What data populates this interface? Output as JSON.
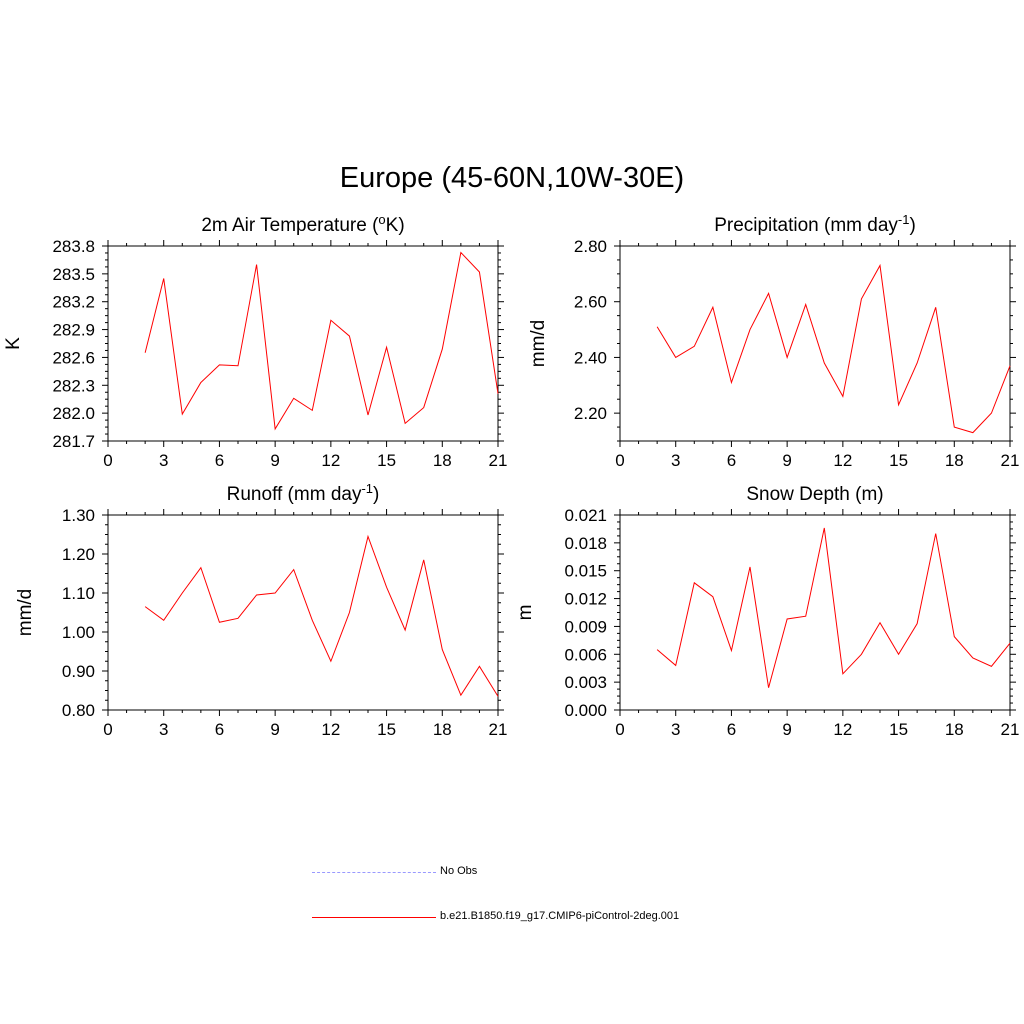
{
  "title": "Europe (45-60N,10W-30E)",
  "colors": {
    "model": "#ff0000",
    "obs": "#9999ff"
  },
  "legend": [
    {
      "label": "No Obs",
      "style": "dashed",
      "color": "#9999ff"
    },
    {
      "label": "b.e21.B1850.f19_g17.CMIP6-piControl-2deg.001",
      "style": "solid",
      "color": "#ff0000"
    }
  ],
  "chart_data": [
    {
      "type": "line",
      "title_main": "2m Air Temperature (",
      "title_sup": "o",
      "title_end": "K)",
      "ylabel": "K",
      "xlim": [
        0,
        21
      ],
      "ylim": [
        281.7,
        283.8
      ],
      "xticks": [
        0,
        3,
        6,
        9,
        12,
        15,
        18,
        21
      ],
      "yticks": [
        281.7,
        282.0,
        282.3,
        282.6,
        282.9,
        283.2,
        283.5,
        283.8
      ],
      "ytick_labels": [
        "281.7",
        "282.0",
        "282.3",
        "282.6",
        "282.9",
        "283.2",
        "283.5",
        "283.8"
      ],
      "series": [
        {
          "name": "b.e21.B1850.f19_g17.CMIP6-piControl-2deg.001",
          "x": [
            2,
            3,
            4,
            5,
            6,
            7,
            8,
            9,
            10,
            11,
            12,
            13,
            14,
            15,
            16,
            17,
            18,
            19,
            20,
            21
          ],
          "values": [
            282.65,
            283.45,
            281.99,
            282.33,
            282.52,
            282.51,
            283.6,
            281.83,
            282.16,
            282.03,
            283.0,
            282.83,
            281.98,
            282.71,
            281.89,
            282.06,
            282.69,
            283.73,
            283.52,
            282.21
          ]
        }
      ]
    },
    {
      "type": "line",
      "title_main": "Precipitation (mm day",
      "title_sup": "-1",
      "title_end": ")",
      "ylabel": "mm/d",
      "xlim": [
        0,
        21
      ],
      "ylim": [
        2.1,
        2.8
      ],
      "xticks": [
        0,
        3,
        6,
        9,
        12,
        15,
        18,
        21
      ],
      "yticks": [
        2.2,
        2.4,
        2.6,
        2.8
      ],
      "ytick_labels": [
        "2.20",
        "2.40",
        "2.60",
        "2.80"
      ],
      "series": [
        {
          "name": "b.e21.B1850.f19_g17.CMIP6-piControl-2deg.001",
          "x": [
            2,
            3,
            4,
            5,
            6,
            7,
            8,
            9,
            10,
            11,
            12,
            13,
            14,
            15,
            16,
            17,
            18,
            19,
            20,
            21
          ],
          "values": [
            2.51,
            2.4,
            2.44,
            2.58,
            2.31,
            2.5,
            2.63,
            2.4,
            2.59,
            2.38,
            2.26,
            2.61,
            2.73,
            2.23,
            2.38,
            2.58,
            2.15,
            2.13,
            2.2,
            2.37
          ]
        }
      ]
    },
    {
      "type": "line",
      "title_main": "Runoff (mm day",
      "title_sup": "-1",
      "title_end": ")",
      "ylabel": "mm/d",
      "xlim": [
        0,
        21
      ],
      "ylim": [
        0.8,
        1.3
      ],
      "xticks": [
        0,
        3,
        6,
        9,
        12,
        15,
        18,
        21
      ],
      "yticks": [
        0.8,
        0.9,
        1.0,
        1.1,
        1.2,
        1.3
      ],
      "ytick_labels": [
        "0.80",
        "0.90",
        "1.00",
        "1.10",
        "1.20",
        "1.30"
      ],
      "series": [
        {
          "name": "b.e21.B1850.f19_g17.CMIP6-piControl-2deg.001",
          "x": [
            2,
            3,
            4,
            5,
            6,
            7,
            8,
            9,
            10,
            11,
            12,
            13,
            14,
            15,
            16,
            17,
            18,
            19,
            20,
            21
          ],
          "values": [
            1.065,
            1.03,
            1.1,
            1.165,
            1.025,
            1.035,
            1.095,
            1.1,
            1.16,
            1.03,
            0.925,
            1.05,
            1.245,
            1.115,
            1.005,
            1.185,
            0.955,
            0.838,
            0.912,
            0.835
          ]
        }
      ]
    },
    {
      "type": "line",
      "title_main": "Snow Depth (m)",
      "title_sup": "",
      "title_end": "",
      "ylabel": "m",
      "xlim": [
        0,
        21
      ],
      "ylim": [
        0.0,
        0.021
      ],
      "xticks": [
        0,
        3,
        6,
        9,
        12,
        15,
        18,
        21
      ],
      "yticks": [
        0.0,
        0.003,
        0.006,
        0.009,
        0.012,
        0.015,
        0.018,
        0.021
      ],
      "ytick_labels": [
        "0.000",
        "0.003",
        "0.006",
        "0.009",
        "0.012",
        "0.015",
        "0.018",
        "0.021"
      ],
      "series": [
        {
          "name": "b.e21.B1850.f19_g17.CMIP6-piControl-2deg.001",
          "x": [
            2,
            3,
            4,
            5,
            6,
            7,
            8,
            9,
            10,
            11,
            12,
            13,
            14,
            15,
            16,
            17,
            18,
            19,
            20,
            21
          ],
          "values": [
            0.0065,
            0.0048,
            0.0137,
            0.0122,
            0.0064,
            0.0154,
            0.0024,
            0.0098,
            0.0101,
            0.0196,
            0.0039,
            0.006,
            0.0094,
            0.006,
            0.0093,
            0.019,
            0.0079,
            0.0056,
            0.0047,
            0.0072
          ]
        }
      ]
    }
  ]
}
